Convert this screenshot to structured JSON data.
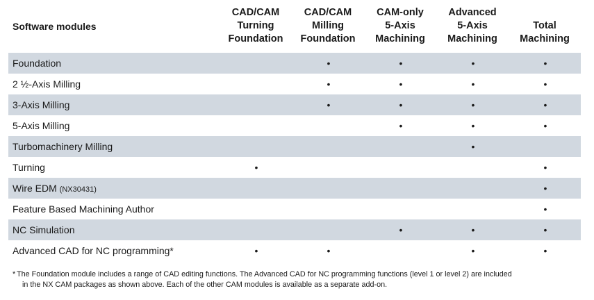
{
  "header": {
    "module_label": "Software modules",
    "columns": [
      {
        "line1": "CAD/CAM",
        "line2": "Turning",
        "line3": "Foundation"
      },
      {
        "line1": "CAD/CAM",
        "line2": "Milling",
        "line3": "Foundation"
      },
      {
        "line1": "CAM-only",
        "line2": "5-Axis",
        "line3": "Machining"
      },
      {
        "line1": "Advanced",
        "line2": "5-Axis",
        "line3": "Machining"
      },
      {
        "line1": "Total",
        "line2": "Machining",
        "line3": ""
      }
    ]
  },
  "bullet": "•",
  "rows": [
    {
      "label": "Foundation",
      "note": "",
      "cells": [
        false,
        true,
        true,
        true,
        true
      ]
    },
    {
      "label": "2 ½-Axis Milling",
      "note": "",
      "cells": [
        false,
        true,
        true,
        true,
        true
      ]
    },
    {
      "label": "3-Axis Milling",
      "note": "",
      "cells": [
        false,
        true,
        true,
        true,
        true
      ]
    },
    {
      "label": "5-Axis Milling",
      "note": "",
      "cells": [
        false,
        false,
        true,
        true,
        true
      ]
    },
    {
      "label": "Turbomachinery Milling",
      "note": "",
      "cells": [
        false,
        false,
        false,
        true,
        false
      ]
    },
    {
      "label": "Turning",
      "note": "",
      "cells": [
        true,
        false,
        false,
        false,
        true
      ]
    },
    {
      "label": "Wire EDM",
      "note": "(NX30431)",
      "cells": [
        false,
        false,
        false,
        false,
        true
      ]
    },
    {
      "label": "Feature Based Machining Author",
      "note": "",
      "cells": [
        false,
        false,
        false,
        false,
        true
      ]
    },
    {
      "label": "NC Simulation",
      "note": "",
      "cells": [
        false,
        false,
        true,
        true,
        true
      ]
    },
    {
      "label": "Advanced CAD for NC programming*",
      "note": "",
      "cells": [
        true,
        true,
        false,
        true,
        true
      ]
    }
  ],
  "footnote": {
    "star": "*",
    "line1": "The Foundation module includes a range of CAD editing functions. The Advanced CAD for NC programming functions (level 1 or level 2) are included",
    "line2": "in the NX CAM packages as shown above. Each of the other CAM modules is available as a separate add-on."
  }
}
